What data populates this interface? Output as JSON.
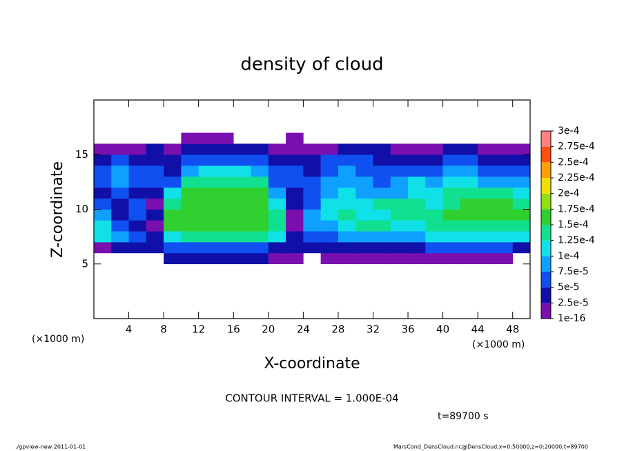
{
  "chart_data": {
    "type": "heatmap",
    "title": "density of cloud",
    "xlabel": "X-coordinate",
    "ylabel": "Z-coordinate",
    "xunit": "(×1000 m)",
    "yunit": "(×1000 m)",
    "annotation": "CONTOUR INTERVAL = 1.000E-04",
    "time": "t=89700 s",
    "footer_left": "./gpview-new  2011-01-01",
    "footer_right": "MarsCond_DensCloud.nc@DensCloud,x=0:50000,z=0:20000,t=89700",
    "xlim": [
      0,
      50
    ],
    "xticks": [
      4,
      8,
      12,
      16,
      20,
      24,
      28,
      32,
      36,
      40,
      44,
      48
    ],
    "ylim": [
      0,
      20
    ],
    "yticks": [
      5,
      10,
      15
    ],
    "x": [
      1,
      3,
      5,
      7,
      9,
      11,
      13,
      15,
      17,
      19,
      21,
      23,
      25,
      27,
      29,
      31,
      33,
      35,
      37,
      39,
      41,
      43,
      45,
      47,
      49
    ],
    "y": [
      5.5,
      6.5,
      7.5,
      8.5,
      9.5,
      10.5,
      11.5,
      12.5,
      13.5,
      14.5,
      15.5,
      16.5
    ],
    "z": [
      [
        null,
        null,
        null,
        null,
        3.5e-05,
        3.5e-05,
        3.5e-05,
        3.5e-05,
        3.5e-05,
        3.5e-05,
        1e-05,
        1e-05,
        null,
        1e-05,
        1e-05,
        1e-05,
        1e-05,
        1e-05,
        1e-05,
        1e-05,
        1e-05,
        1e-05,
        1e-05,
        1e-05,
        null
      ],
      [
        1e-05,
        3.5e-05,
        3.5e-05,
        3.5e-05,
        6e-05,
        6e-05,
        6e-05,
        6e-05,
        6e-05,
        6e-05,
        3.5e-05,
        3.5e-05,
        3.5e-05,
        3.5e-05,
        3.5e-05,
        3.5e-05,
        3.5e-05,
        3.5e-05,
        3.5e-05,
        6e-05,
        6e-05,
        6e-05,
        6e-05,
        6e-05,
        3.5e-05
      ],
      [
        0.00011,
        8.5e-05,
        6e-05,
        3.5e-05,
        0.00011,
        0.000135,
        0.000135,
        0.000135,
        0.000135,
        0.000135,
        0.00011,
        3.5e-05,
        6e-05,
        6e-05,
        8.5e-05,
        8.5e-05,
        8.5e-05,
        8.5e-05,
        8.5e-05,
        0.00011,
        0.00011,
        0.00011,
        0.00011,
        0.00011,
        0.00011
      ],
      [
        0.00011,
        6e-05,
        3.5e-05,
        1e-05,
        0.00016,
        0.00016,
        0.00016,
        0.00016,
        0.00016,
        0.00016,
        0.000135,
        1e-05,
        8.5e-05,
        8.5e-05,
        0.00011,
        0.000135,
        0.000135,
        0.00011,
        0.00011,
        0.000135,
        0.000135,
        0.000135,
        0.000135,
        0.000135,
        0.000135
      ],
      [
        8.5e-05,
        3.5e-05,
        6e-05,
        3.5e-05,
        0.00016,
        0.00016,
        0.00016,
        0.00016,
        0.00016,
        0.00016,
        0.000135,
        1e-05,
        8.5e-05,
        0.00011,
        0.000135,
        0.00011,
        0.00011,
        0.000135,
        0.000135,
        0.000135,
        0.00016,
        0.00016,
        0.00016,
        0.00016,
        0.00016
      ],
      [
        6e-05,
        3.5e-05,
        6e-05,
        1e-05,
        0.000135,
        0.00016,
        0.00016,
        0.00016,
        0.00016,
        0.00016,
        0.00011,
        3.5e-05,
        6e-05,
        0.00011,
        0.00011,
        0.00011,
        0.000135,
        0.000135,
        0.000135,
        0.00011,
        0.000135,
        0.00016,
        0.00016,
        0.00016,
        0.000135
      ],
      [
        3.5e-05,
        6e-05,
        3.5e-05,
        3.5e-05,
        0.00011,
        0.00016,
        0.00016,
        0.00016,
        0.00016,
        0.00016,
        8.5e-05,
        3.5e-05,
        6e-05,
        8.5e-05,
        0.00011,
        8.5e-05,
        8.5e-05,
        8.5e-05,
        0.00011,
        0.00011,
        0.000135,
        0.000135,
        0.000135,
        0.000135,
        0.00011
      ],
      [
        6e-05,
        8.5e-05,
        6e-05,
        6e-05,
        6e-05,
        0.000135,
        0.000135,
        0.000135,
        0.000135,
        0.000135,
        6e-05,
        6e-05,
        6e-05,
        8.5e-05,
        8.5e-05,
        8.5e-05,
        6e-05,
        8.5e-05,
        0.00011,
        8.5e-05,
        0.00011,
        0.00011,
        8.5e-05,
        8.5e-05,
        8.5e-05
      ],
      [
        6e-05,
        8.5e-05,
        6e-05,
        6e-05,
        3.5e-05,
        8.5e-05,
        0.00011,
        0.00011,
        0.00011,
        8.5e-05,
        6e-05,
        6e-05,
        3.5e-05,
        6e-05,
        8.5e-05,
        6e-05,
        6e-05,
        6e-05,
        6e-05,
        6e-05,
        8.5e-05,
        8.5e-05,
        6e-05,
        6e-05,
        6e-05
      ],
      [
        3.5e-05,
        6e-05,
        3.5e-05,
        3.5e-05,
        3.5e-05,
        6e-05,
        6e-05,
        6e-05,
        6e-05,
        6e-05,
        3.5e-05,
        3.5e-05,
        3.5e-05,
        6e-05,
        6e-05,
        6e-05,
        3.5e-05,
        3.5e-05,
        3.5e-05,
        3.5e-05,
        6e-05,
        6e-05,
        3.5e-05,
        3.5e-05,
        3.5e-05
      ],
      [
        1e-05,
        1e-05,
        1e-05,
        3.5e-05,
        1e-05,
        3.5e-05,
        3.5e-05,
        3.5e-05,
        3.5e-05,
        3.5e-05,
        1e-05,
        1e-05,
        1e-05,
        1e-05,
        3.5e-05,
        3.5e-05,
        3.5e-05,
        1e-05,
        1e-05,
        1e-05,
        3.5e-05,
        3.5e-05,
        1e-05,
        1e-05,
        1e-05
      ],
      [
        null,
        null,
        null,
        null,
        null,
        1e-05,
        1e-05,
        1e-05,
        null,
        null,
        null,
        1e-05,
        null,
        null,
        null,
        null,
        null,
        null,
        null,
        null,
        null,
        null,
        null,
        null,
        null
      ]
    ],
    "levels": [
      {
        "value": 1e-16,
        "label": "1e-16"
      },
      {
        "value": 2.5e-05,
        "label": "2.5e-5"
      },
      {
        "value": 5e-05,
        "label": "5e-5"
      },
      {
        "value": 7.5e-05,
        "label": "7.5e-5"
      },
      {
        "value": 0.0001,
        "label": "1e-4"
      },
      {
        "value": 0.000125,
        "label": "1.25e-4"
      },
      {
        "value": 0.00015,
        "label": "1.5e-4"
      },
      {
        "value": 0.000175,
        "label": "1.75e-4"
      },
      {
        "value": 0.0002,
        "label": "2e-4"
      },
      {
        "value": 0.000225,
        "label": "2.25e-4"
      },
      {
        "value": 0.00025,
        "label": "2.5e-4"
      },
      {
        "value": 0.000275,
        "label": "2.75e-4"
      },
      {
        "value": 0.0003,
        "label": "3e-4"
      }
    ],
    "colors": [
      "#7a0fb0",
      "#1010a8",
      "#1050f0",
      "#10a0ff",
      "#10e0e8",
      "#10e090",
      "#30d030",
      "#90e010",
      "#f0e000",
      "#ffa000",
      "#ff5010",
      "#ff8080"
    ]
  }
}
